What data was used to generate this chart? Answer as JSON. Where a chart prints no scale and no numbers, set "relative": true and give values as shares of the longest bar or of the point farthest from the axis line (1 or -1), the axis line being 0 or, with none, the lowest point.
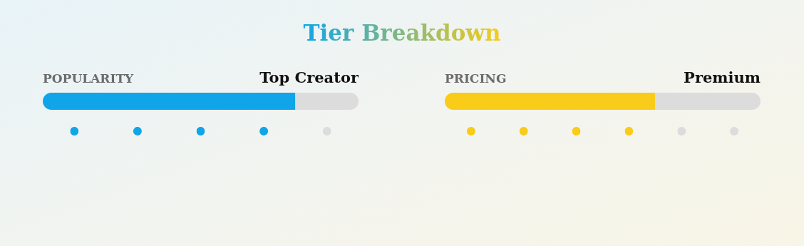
{
  "chart_data": [
    {
      "type": "bar",
      "orientation": "horizontal",
      "stacked": true,
      "relative": true,
      "title": "Tier Breakdown",
      "ylabel": "POPULARITY",
      "annotations": [
        "Top Creator"
      ],
      "categories": [
        null
      ],
      "series": [
        {
          "color": "#10a5e8",
          "values": [
            0.8
          ]
        },
        {
          "color": "#dcdcdc",
          "values": [
            0.2
          ]
        }
      ]
    },
    {
      "type": "bar",
      "relative": true,
      "categories": [
        null,
        null,
        null,
        null,
        null
      ],
      "values": [
        1,
        1,
        1,
        1,
        1
      ],
      "colors": [
        "#10a5e8",
        "#10a5e8",
        "#10a5e8",
        "#10a5e8",
        "#dcdcdc"
      ]
    },
    {
      "type": "bar",
      "orientation": "horizontal",
      "stacked": true,
      "relative": true,
      "ylabel": "PRICING",
      "annotations": [
        "Premium"
      ],
      "categories": [
        null
      ],
      "series": [
        {
          "color": "#f8cc18",
          "values": [
            0.667
          ]
        },
        {
          "color": "#dcdcdc",
          "values": [
            0.333
          ]
        }
      ]
    },
    {
      "type": "bar",
      "relative": true,
      "categories": [
        null,
        null,
        null,
        null,
        null,
        null
      ],
      "values": [
        1,
        1,
        1,
        1,
        1,
        1
      ],
      "colors": [
        "#f8cc18",
        "#f8cc18",
        "#f8cc18",
        "#f8cc18",
        "#dcdcdc",
        "#dcdcdc"
      ]
    }
  ]
}
